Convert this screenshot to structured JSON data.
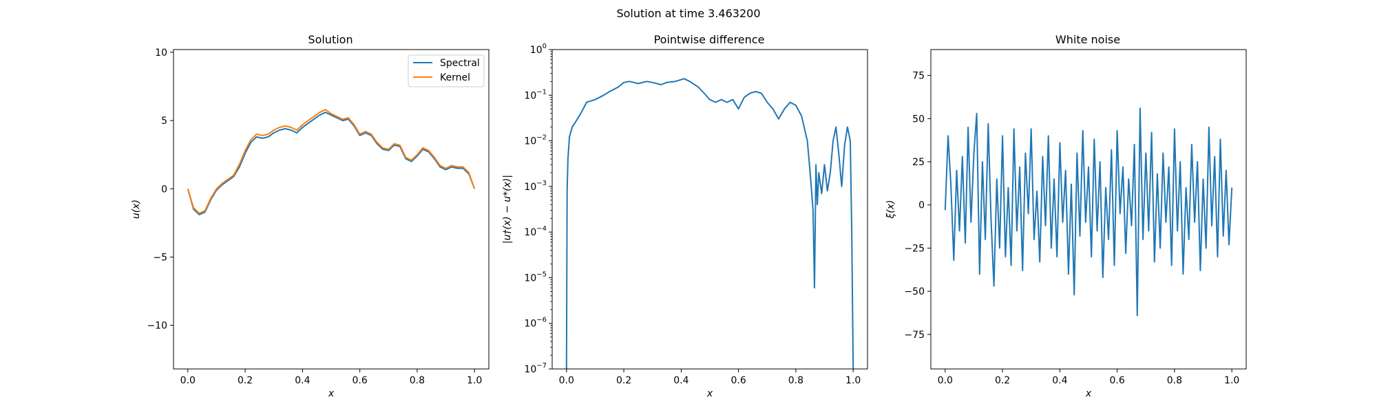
{
  "figure": {
    "suptitle": "Solution at time 3.463200"
  },
  "colors": {
    "spectral": "#1f77b4",
    "kernel": "#ff7f0e",
    "noise": "#1f77b4",
    "diff": "#1f77b4"
  },
  "chart_data": [
    {
      "type": "line",
      "title": "Solution",
      "xlabel": "x",
      "ylabel": "u(x)",
      "xlim": [
        -0.05,
        1.05
      ],
      "ylim": [
        -13.2,
        10.2
      ],
      "xticks": [
        "0.0",
        "0.2",
        "0.4",
        "0.6",
        "0.8",
        "1.0"
      ],
      "yticks": [
        "10",
        "5",
        "0",
        "−5",
        "−10"
      ],
      "legend": {
        "position": "top-right",
        "entries": [
          "Spectral",
          "Kernel"
        ]
      },
      "x": [
        0.0,
        0.02,
        0.04,
        0.06,
        0.08,
        0.1,
        0.12,
        0.14,
        0.16,
        0.18,
        0.2,
        0.22,
        0.24,
        0.26,
        0.28,
        0.3,
        0.32,
        0.34,
        0.36,
        0.38,
        0.4,
        0.42,
        0.44,
        0.46,
        0.48,
        0.5,
        0.52,
        0.54,
        0.56,
        0.58,
        0.6,
        0.62,
        0.64,
        0.66,
        0.68,
        0.7,
        0.72,
        0.74,
        0.76,
        0.78,
        0.8,
        0.82,
        0.84,
        0.86,
        0.88,
        0.9,
        0.92,
        0.94,
        0.96,
        0.98,
        1.0
      ],
      "series": [
        {
          "name": "Spectral",
          "values": [
            0.0,
            -1.5,
            -1.9,
            -1.7,
            -0.8,
            -0.1,
            0.3,
            0.6,
            0.9,
            1.6,
            2.6,
            3.4,
            3.8,
            3.7,
            3.8,
            4.1,
            4.3,
            4.4,
            4.3,
            4.1,
            4.5,
            4.8,
            5.1,
            5.4,
            5.6,
            5.4,
            5.2,
            5.0,
            5.1,
            4.6,
            3.9,
            4.1,
            3.9,
            3.3,
            2.9,
            2.8,
            3.2,
            3.1,
            2.2,
            2.0,
            2.4,
            2.9,
            2.7,
            2.2,
            1.6,
            1.4,
            1.6,
            1.5,
            1.5,
            1.1,
            0.0
          ]
        },
        {
          "name": "Kernel",
          "values": [
            0.0,
            -1.4,
            -1.8,
            -1.6,
            -0.7,
            0.0,
            0.4,
            0.7,
            1.0,
            1.8,
            2.8,
            3.6,
            4.0,
            3.9,
            4.0,
            4.3,
            4.5,
            4.6,
            4.5,
            4.3,
            4.7,
            5.0,
            5.3,
            5.6,
            5.8,
            5.5,
            5.3,
            5.1,
            5.2,
            4.7,
            4.0,
            4.2,
            4.0,
            3.4,
            3.0,
            2.9,
            3.3,
            3.2,
            2.3,
            2.1,
            2.5,
            3.0,
            2.8,
            2.3,
            1.7,
            1.5,
            1.7,
            1.6,
            1.6,
            1.2,
            0.0
          ]
        }
      ]
    },
    {
      "type": "line",
      "title": "Pointwise difference",
      "xlabel": "x",
      "ylabel": "|u†(x) − u*(x)|",
      "yscale": "log",
      "xlim": [
        -0.05,
        1.05
      ],
      "ylim": [
        1e-07,
        1
      ],
      "xticks": [
        "0.0",
        "0.2",
        "0.4",
        "0.6",
        "0.8",
        "1.0"
      ],
      "yticks": [
        "10",
        "10",
        "10",
        "10",
        "10",
        "10",
        "10",
        "10"
      ],
      "ytick_exponents": [
        "0",
        "−1",
        "−2",
        "−3",
        "−4",
        "−5",
        "−6",
        "−7"
      ],
      "x": [
        0.0,
        0.002,
        0.005,
        0.01,
        0.02,
        0.03,
        0.05,
        0.07,
        0.1,
        0.13,
        0.15,
        0.18,
        0.2,
        0.22,
        0.25,
        0.28,
        0.3,
        0.33,
        0.35,
        0.38,
        0.41,
        0.43,
        0.46,
        0.48,
        0.5,
        0.52,
        0.54,
        0.56,
        0.58,
        0.6,
        0.62,
        0.64,
        0.66,
        0.68,
        0.7,
        0.72,
        0.74,
        0.76,
        0.78,
        0.8,
        0.82,
        0.84,
        0.85,
        0.86,
        0.865,
        0.87,
        0.875,
        0.88,
        0.89,
        0.9,
        0.91,
        0.92,
        0.93,
        0.94,
        0.95,
        0.96,
        0.97,
        0.98,
        0.99,
        0.995,
        1.0
      ],
      "series": [
        {
          "name": "",
          "values": [
            1e-07,
            0.0008,
            0.004,
            0.012,
            0.02,
            0.025,
            0.04,
            0.07,
            0.08,
            0.1,
            0.12,
            0.15,
            0.19,
            0.2,
            0.18,
            0.2,
            0.19,
            0.17,
            0.19,
            0.2,
            0.23,
            0.2,
            0.15,
            0.11,
            0.08,
            0.07,
            0.08,
            0.07,
            0.08,
            0.05,
            0.09,
            0.11,
            0.12,
            0.11,
            0.07,
            0.05,
            0.03,
            0.05,
            0.07,
            0.06,
            0.035,
            0.01,
            0.002,
            0.0003,
            6e-06,
            0.003,
            0.0004,
            0.002,
            0.0007,
            0.003,
            0.0008,
            0.002,
            0.01,
            0.02,
            0.005,
            0.001,
            0.008,
            0.02,
            0.01,
            0.0001,
            1e-07
          ]
        }
      ]
    },
    {
      "type": "line",
      "title": "White noise",
      "xlabel": "x",
      "ylabel": "ξ(x)",
      "xlim": [
        -0.05,
        1.05
      ],
      "ylim": [
        -95,
        90
      ],
      "xticks": [
        "0.0",
        "0.2",
        "0.4",
        "0.6",
        "0.8",
        "1.0"
      ],
      "yticks": [
        "75",
        "50",
        "25",
        "0",
        "−25",
        "−50",
        "−75"
      ],
      "x": [
        0.0,
        0.01,
        0.02,
        0.03,
        0.04,
        0.05,
        0.06,
        0.07,
        0.08,
        0.09,
        0.1,
        0.11,
        0.12,
        0.13,
        0.14,
        0.15,
        0.16,
        0.17,
        0.18,
        0.19,
        0.2,
        0.21,
        0.22,
        0.23,
        0.24,
        0.25,
        0.26,
        0.27,
        0.28,
        0.29,
        0.3,
        0.31,
        0.32,
        0.33,
        0.34,
        0.35,
        0.36,
        0.37,
        0.38,
        0.39,
        0.4,
        0.41,
        0.42,
        0.43,
        0.44,
        0.45,
        0.46,
        0.47,
        0.48,
        0.49,
        0.5,
        0.51,
        0.52,
        0.53,
        0.54,
        0.55,
        0.56,
        0.57,
        0.58,
        0.59,
        0.6,
        0.61,
        0.62,
        0.63,
        0.64,
        0.65,
        0.66,
        0.67,
        0.68,
        0.69,
        0.7,
        0.71,
        0.72,
        0.73,
        0.74,
        0.75,
        0.76,
        0.77,
        0.78,
        0.79,
        0.8,
        0.81,
        0.82,
        0.83,
        0.84,
        0.85,
        0.86,
        0.87,
        0.88,
        0.89,
        0.9,
        0.91,
        0.92,
        0.93,
        0.94,
        0.95,
        0.96,
        0.97,
        0.98,
        0.99,
        1.0
      ],
      "series": [
        {
          "name": "",
          "values": [
            -3,
            40,
            12,
            -32,
            20,
            -15,
            28,
            -22,
            45,
            -10,
            30,
            53,
            -40,
            25,
            -20,
            47,
            -8,
            -47,
            15,
            -25,
            40,
            -30,
            10,
            -35,
            44,
            -15,
            22,
            -38,
            30,
            -5,
            44,
            -20,
            8,
            -33,
            28,
            -12,
            40,
            -25,
            15,
            -30,
            36,
            -10,
            20,
            -40,
            12,
            -52,
            30,
            -18,
            43,
            -10,
            22,
            -30,
            38,
            -15,
            25,
            -42,
            10,
            -20,
            32,
            -35,
            43,
            -5,
            22,
            -28,
            15,
            -12,
            35,
            -64,
            56,
            -20,
            30,
            -15,
            42,
            -33,
            18,
            -25,
            30,
            -10,
            22,
            -35,
            44,
            -15,
            25,
            -40,
            10,
            -20,
            35,
            -10,
            25,
            -38,
            15,
            -25,
            45,
            -12,
            28,
            -30,
            38,
            -18,
            20,
            -23,
            10
          ]
        }
      ]
    }
  ]
}
